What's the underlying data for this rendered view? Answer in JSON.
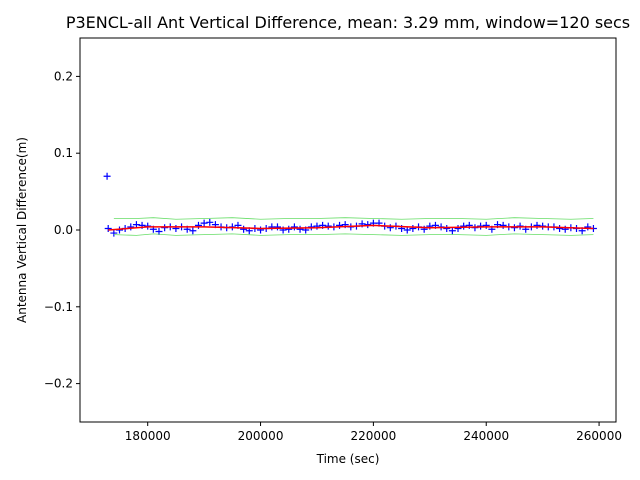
{
  "chart_data": {
    "type": "scatter",
    "title": "P3ENCL-all Ant Vertical Difference, mean: 3.29 mm, window=120 secs",
    "xlabel": "Time (sec)",
    "ylabel": "Antenna Vertical Difference(m)",
    "xlim": [
      168000,
      263000
    ],
    "ylim": [
      -0.25,
      0.25
    ],
    "xticks": [
      180000,
      200000,
      220000,
      240000,
      260000
    ],
    "xtick_labels": [
      "180000",
      "200000",
      "220000",
      "240000",
      "260000"
    ],
    "yticks": [
      -0.2,
      -0.1,
      0.0,
      0.1,
      0.2
    ],
    "ytick_labels": [
      "−0.2",
      "−0.1",
      "0.0",
      "0.1",
      "0.2"
    ],
    "grid": false,
    "series": [
      {
        "style": "markers",
        "marker": "+",
        "color": "#0000ff",
        "x": [
          172800,
          173000,
          174000,
          175000,
          176000,
          177000,
          178000,
          179000,
          180000,
          181000,
          182000,
          183000,
          184000,
          185000,
          186000,
          187000,
          188000,
          189000,
          190000,
          191000,
          192000,
          193000,
          194000,
          195000,
          196000,
          197000,
          198000,
          199000,
          200000,
          201000,
          202000,
          203000,
          204000,
          205000,
          206000,
          207000,
          208000,
          209000,
          210000,
          211000,
          212000,
          213000,
          214000,
          215000,
          216000,
          217000,
          218000,
          219000,
          220000,
          221000,
          222000,
          223000,
          224000,
          225000,
          226000,
          227000,
          228000,
          229000,
          230000,
          231000,
          232000,
          233000,
          234000,
          235000,
          236000,
          237000,
          238000,
          239000,
          240000,
          241000,
          242000,
          243000,
          244000,
          245000,
          246000,
          247000,
          248000,
          249000,
          250000,
          251000,
          252000,
          253000,
          254000,
          255000,
          256000,
          257000,
          258000,
          259000
        ],
        "y": [
          0.07,
          0.002,
          -0.004,
          0.0,
          0.002,
          0.004,
          0.007,
          0.006,
          0.005,
          0.001,
          -0.002,
          0.003,
          0.004,
          0.002,
          0.004,
          0.001,
          -0.001,
          0.006,
          0.009,
          0.01,
          0.007,
          0.004,
          0.003,
          0.004,
          0.006,
          0.001,
          -0.001,
          0.002,
          0.0,
          0.002,
          0.004,
          0.004,
          0.0,
          0.001,
          0.004,
          0.001,
          0.0,
          0.004,
          0.005,
          0.006,
          0.005,
          0.004,
          0.006,
          0.007,
          0.004,
          0.005,
          0.008,
          0.007,
          0.009,
          0.009,
          0.005,
          0.003,
          0.005,
          0.002,
          0.0,
          0.002,
          0.004,
          0.001,
          0.005,
          0.006,
          0.004,
          0.002,
          -0.001,
          0.002,
          0.005,
          0.006,
          0.003,
          0.005,
          0.006,
          0.001,
          0.007,
          0.006,
          0.004,
          0.003,
          0.005,
          0.001,
          0.004,
          0.006,
          0.005,
          0.004,
          0.004,
          0.002,
          0.001,
          0.003,
          0.002,
          -0.001,
          0.004,
          0.002
        ]
      },
      {
        "style": "line",
        "color": "#ff0000",
        "x": [
          173000,
          180000,
          190000,
          200000,
          210000,
          220000,
          230000,
          240000,
          250000,
          259000
        ],
        "y": [
          0.0,
          0.004,
          0.004,
          0.002,
          0.003,
          0.006,
          0.003,
          0.004,
          0.004,
          0.002
        ]
      },
      {
        "style": "line",
        "color": "#66dd66",
        "x": [
          174000,
          178000,
          181000,
          185000,
          190000,
          195000,
          200000,
          205000,
          210000,
          215000,
          220000,
          225000,
          230000,
          235000,
          240000,
          245000,
          250000,
          255000,
          259000
        ],
        "y": [
          0.015,
          0.015,
          0.016,
          0.014,
          0.015,
          0.016,
          0.014,
          0.015,
          0.015,
          0.016,
          0.015,
          0.014,
          0.015,
          0.015,
          0.014,
          0.016,
          0.015,
          0.014,
          0.015
        ]
      },
      {
        "style": "line",
        "color": "#66dd66",
        "x": [
          174000,
          178000,
          181000,
          185000,
          190000,
          195000,
          200000,
          205000,
          210000,
          215000,
          220000,
          225000,
          230000,
          235000,
          240000,
          245000,
          250000,
          255000,
          259000
        ],
        "y": [
          -0.006,
          -0.007,
          -0.005,
          -0.007,
          -0.006,
          -0.005,
          -0.007,
          -0.006,
          -0.006,
          -0.005,
          -0.006,
          -0.007,
          -0.006,
          -0.006,
          -0.007,
          -0.005,
          -0.006,
          -0.007,
          -0.006
        ]
      }
    ]
  }
}
